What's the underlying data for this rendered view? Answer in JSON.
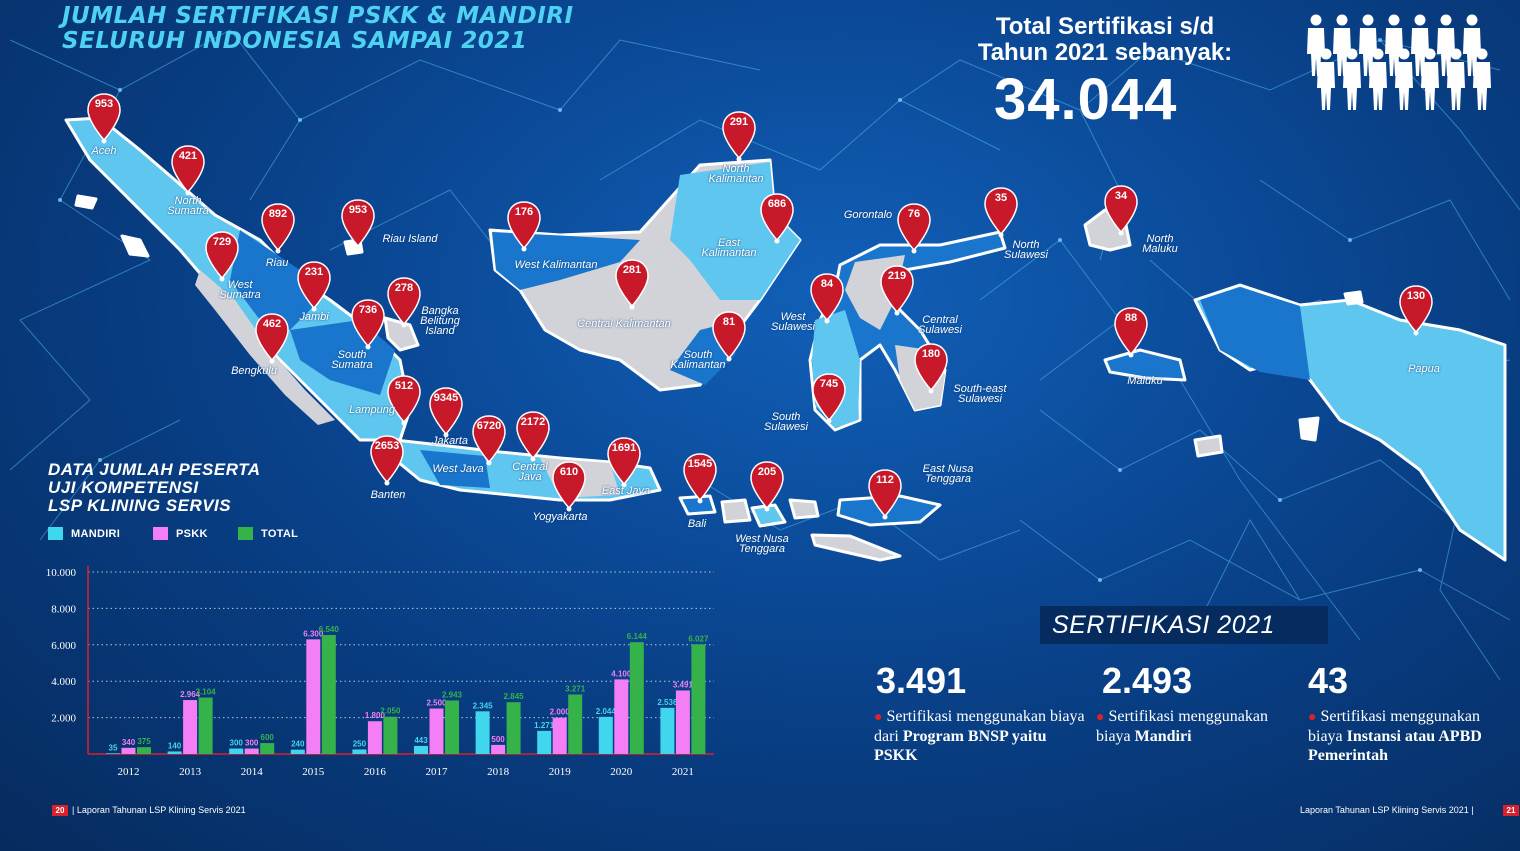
{
  "header": {
    "title_line1": "JUMLAH SERTIFIKASI PSKK & MANDIRI",
    "title_line2": "SELURUH INDONESIA SAMPAI 2021"
  },
  "total": {
    "line1": "Total Sertifikasi s/d",
    "line2": "Tahun 2021 sebanyak:",
    "value": "34.044",
    "icon": "people-group-icon"
  },
  "regions": [
    {
      "name": "Aceh",
      "value": "953"
    },
    {
      "name": "North\nSumatra",
      "value": "421"
    },
    {
      "name": "Riau",
      "value": "892"
    },
    {
      "name": "Riau Island",
      "value": "953"
    },
    {
      "name": "West\nSumatra",
      "value": "729"
    },
    {
      "name": "Jambi",
      "value": "231"
    },
    {
      "name": "Bangka\nBelitung\nIsland",
      "value": "278"
    },
    {
      "name": "South\nSumatra",
      "value": "736"
    },
    {
      "name": "Bengkulu",
      "value": "462"
    },
    {
      "name": "Lampung",
      "value": "512"
    },
    {
      "name": "Jakarta",
      "value": "9345"
    },
    {
      "name": "Banten",
      "value": "2653"
    },
    {
      "name": "West Java",
      "value": "6720"
    },
    {
      "name": "Central\nJava",
      "value": "2172"
    },
    {
      "name": "Yogyakarta",
      "value": "610"
    },
    {
      "name": "East Java",
      "value": "1691"
    },
    {
      "name": "Bali",
      "value": "1545"
    },
    {
      "name": "West Nusa\nTenggara",
      "value": "205"
    },
    {
      "name": "East Nusa\nTenggara",
      "value": "112"
    },
    {
      "name": "West Kalimantan",
      "value": "176"
    },
    {
      "name": "Central  Kalimantan",
      "value": "281"
    },
    {
      "name": "North\nKalimantan",
      "value": "291"
    },
    {
      "name": "East\nKalimantan",
      "value": "686"
    },
    {
      "name": "South\nKalimantan",
      "value": "81"
    },
    {
      "name": "Gorontalo",
      "value": "76"
    },
    {
      "name": "North\nSulawesi",
      "value": "35"
    },
    {
      "name": "Central\nSulawesi",
      "value": "219"
    },
    {
      "name": "West\nSulawesi",
      "value": "84"
    },
    {
      "name": "South\nSulawesi",
      "value": "745"
    },
    {
      "name": "South-east\nSulawesi",
      "value": "180"
    },
    {
      "name": "North\nMaluku",
      "value": "34"
    },
    {
      "name": "Maluku",
      "value": "88"
    },
    {
      "name": "Papua",
      "value": "130"
    }
  ],
  "chart_section": {
    "title_line1": "DATA JUMLAH PESERTA",
    "title_line2": "UJI KOMPETENSI",
    "title_line3": "LSP KLINING SERVIS"
  },
  "chart_data": {
    "type": "bar",
    "categories": [
      "2012",
      "2013",
      "2014",
      "2015",
      "2016",
      "2017",
      "2018",
      "2019",
      "2020",
      "2021"
    ],
    "series": [
      {
        "name": "MANDIRI",
        "color": "#3fd6ee",
        "values": [
          35,
          140,
          300,
          240,
          250,
          443,
          2345,
          1271,
          2044,
          2536
        ],
        "labels": [
          "35",
          "140",
          "300",
          "240",
          "250",
          "443",
          "2.345",
          "1.271",
          "2.044",
          "2.536"
        ]
      },
      {
        "name": "PSKK",
        "color": "#f37ef5",
        "values": [
          340,
          2964,
          300,
          6300,
          1800,
          2500,
          500,
          2000,
          4100,
          3491
        ],
        "labels": [
          "340",
          "2.964",
          "300",
          "6.300",
          "1.800",
          "2.500",
          "500",
          "2.000",
          "4.100",
          "3.491"
        ]
      },
      {
        "name": "TOTAL",
        "color": "#36b24a",
        "values": [
          375,
          3104,
          600,
          6540,
          2050,
          2943,
          2845,
          3271,
          6144,
          6027
        ],
        "labels": [
          "375",
          "3.104",
          "600",
          "6.540",
          "2.050",
          "2.943",
          "2.845",
          "3.271",
          "6.144",
          "6.027"
        ]
      }
    ],
    "yticks": [
      "10.000",
      "8.000",
      "6.000",
      "4.000",
      "2.000"
    ],
    "ytick_values": [
      10000,
      8000,
      6000,
      4000,
      2000
    ],
    "ylim": [
      0,
      10000
    ],
    "grid": true,
    "legend": "top-left"
  },
  "sertifikasi": {
    "title": "SERTIFIKASI 2021",
    "items": [
      {
        "value": "3.491",
        "text1": "Sertifikasi menggunakan biaya dari ",
        "bold": "Program BNSP yaitu PSKK",
        "text2": ""
      },
      {
        "value": "2.493",
        "text1": "Sertifikasi menggunakan biaya ",
        "bold": "Mandiri",
        "text2": ""
      },
      {
        "value": "43",
        "text1": "Sertifikasi menggunakan biaya ",
        "bold": "Instansi atau APBD Pemerintah",
        "text2": ""
      }
    ]
  },
  "footer": {
    "left_page": "20",
    "left_text": "| Laporan Tahunan LSP Klining Servis 2021",
    "right_text": "Laporan Tahunan LSP Klining Servis 2021 |",
    "right_page": "21"
  },
  "colors": {
    "pin": "#c8192a",
    "title": "#4fd2f2",
    "island_light": "#5fc6ef",
    "island_dark": "#1a76cc",
    "island_grey": "#d2d3d8"
  }
}
